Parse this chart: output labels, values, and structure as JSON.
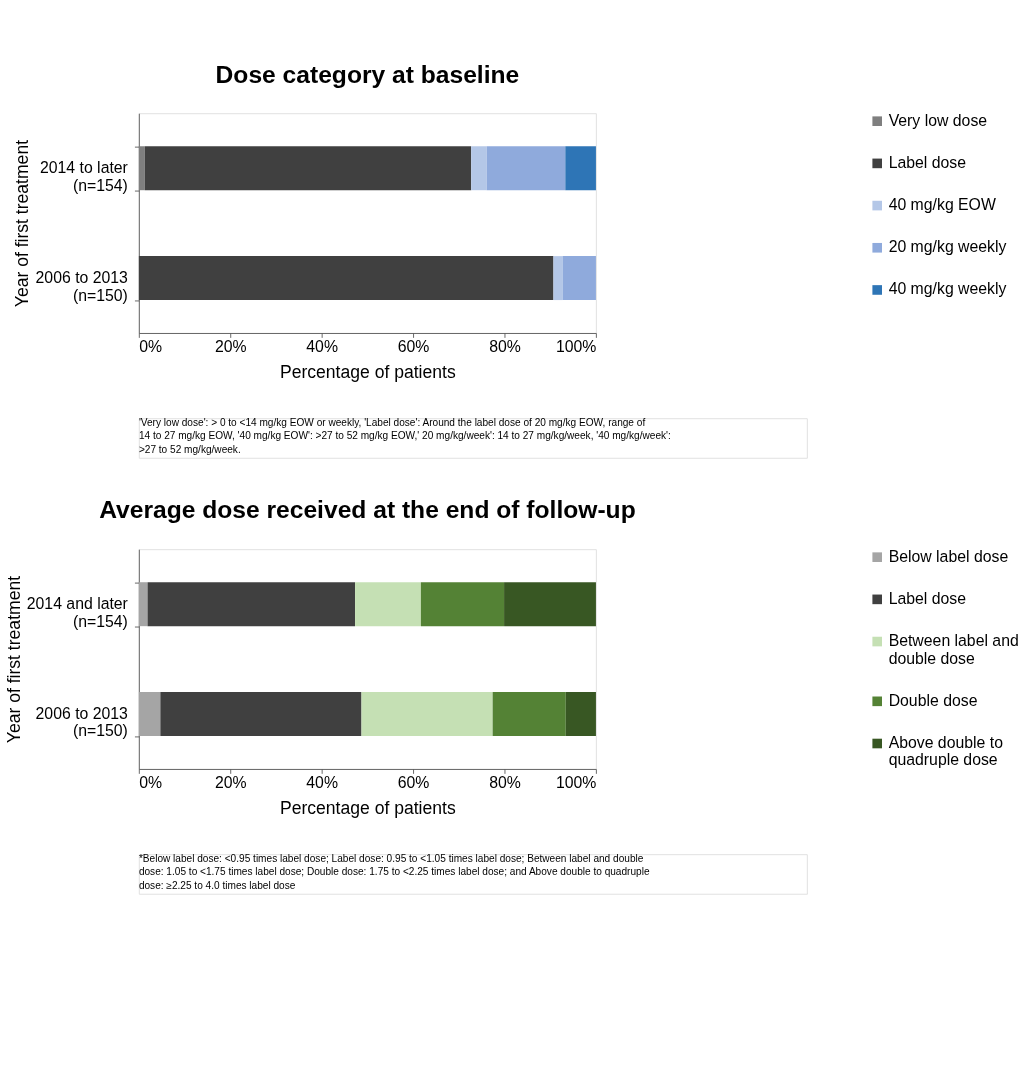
{
  "chart_data": [
    {
      "type": "bar",
      "orientation": "horizontal",
      "stacked": true,
      "title": "Dose category at baseline",
      "xlabel": "Percentage of patients",
      "ylabel": "Year of first treatment",
      "categories": [
        "2014 to later (n=154)",
        "2006 to 2013 (n=150)"
      ],
      "series": [
        {
          "name": "Very low dose",
          "color": "#7f7f7f",
          "values": [
            1.3,
            0
          ]
        },
        {
          "name": "Label dose",
          "color": "#404040",
          "values": [
            71.4,
            90.7
          ]
        },
        {
          "name": "40 mg/kg EOW",
          "color": "#b4c7e7",
          "values": [
            3.4,
            2.0
          ]
        },
        {
          "name": "20 mg/kg weekly",
          "color": "#8faadc",
          "values": [
            17.2,
            7.3
          ]
        },
        {
          "name": "40 mg/kg weekly",
          "color": "#2e75b6",
          "values": [
            6.7,
            0
          ]
        }
      ],
      "xlim": [
        0,
        100
      ],
      "xticks": [
        {
          "value": 0,
          "label": "0%"
        },
        {
          "value": 20,
          "label": "20%"
        },
        {
          "value": 40,
          "label": "40%"
        },
        {
          "value": 60,
          "label": "60%"
        },
        {
          "value": 80,
          "label": "80%"
        },
        {
          "value": 100,
          "label": "100%"
        }
      ],
      "grid": false,
      "legend": "right",
      "annotations": [
        "'Very low dose': > 0 to <14 mg/kg EOW or weekly, 'Label dose': Around the label dose of 20 mg/kg EOW, range of 14 to 27 mg/kg EOW, '40 mg/kg EOW':  >27 to 52 mg/kg EOW,' 20 mg/kg/week': 14 to 27 mg/kg/week, '40 mg/kg/week': >27 to 52 mg/kg/week."
      ]
    },
    {
      "type": "bar",
      "orientation": "horizontal",
      "stacked": true,
      "title": "Average dose received at the end of follow-up",
      "xlabel": "Percentage of patients",
      "ylabel": "Year of first treatment",
      "categories": [
        "2014 and later (n=154)",
        "2006 to 2013 (n=150)"
      ],
      "series": [
        {
          "name": "Below label dose",
          "color": "#a5a5a5",
          "values": [
            1.9,
            4.7
          ]
        },
        {
          "name": "Label dose",
          "color": "#404040",
          "values": [
            45.4,
            44.0
          ]
        },
        {
          "name": "Between label and double dose",
          "color": "#c5e0b4",
          "values": [
            14.4,
            28.7
          ]
        },
        {
          "name": "Double dose",
          "color": "#548235",
          "values": [
            18.2,
            16.0
          ]
        },
        {
          "name": "Above double to quadruple dose",
          "color": "#385723",
          "values": [
            20.1,
            6.6
          ]
        }
      ],
      "xlim": [
        0,
        100
      ],
      "xticks": [
        {
          "value": 0,
          "label": "0%"
        },
        {
          "value": 20,
          "label": "20%"
        },
        {
          "value": 40,
          "label": "40%"
        },
        {
          "value": 60,
          "label": "60%"
        },
        {
          "value": 80,
          "label": "80%"
        },
        {
          "value": 100,
          "label": "100%"
        }
      ],
      "grid": false,
      "legend": "right",
      "annotations": [
        "*Below label dose: <0.95 times label dose; Label dose: 0.95 to <1.05 times label dose; Between label and double dose: 1.05 to <1.75 times label dose; Double dose: 1.75 to <2.25 times label dose; and Above double to quadruple dose: ≥2.25 to 4.0 times label dose"
      ]
    }
  ]
}
